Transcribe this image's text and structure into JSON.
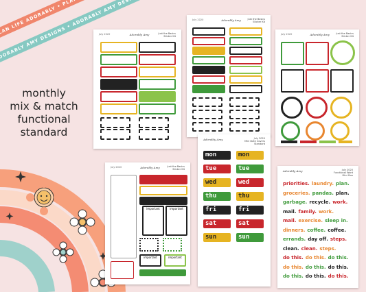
{
  "ribbons": {
    "top": "PLAN LIFE ADORABLY  •  PLAN LIFE ADORABLY  •  PLAN LIFE",
    "bottom": "ADORABLY AMY DESIGNS  •  ADORABLY AMY DESIGNS  •  ADORA"
  },
  "title": {
    "line1": "monthly",
    "line2": "mix & match",
    "line3": "functional",
    "line4": "standard"
  },
  "sheets": {
    "header_month": "July 2020",
    "brand": "Adorably Amy",
    "hdr_right_1": "Just the Basics",
    "hdr_right_2": "Sticker Kit",
    "sheet5_right_1": "July 2020",
    "sheet5_right_2": "Mini Date Covers",
    "sheet5_right_3": "Standard",
    "sheet6_right_1": "July 2020",
    "sheet6_right_2": "Functional Word",
    "sheet6_right_3": "Mini Size",
    "important": "important",
    "days_left": [
      "mon",
      "tue",
      "wed",
      "thu",
      "fri",
      "sat",
      "sun"
    ],
    "days_right": [
      "mon",
      "tue",
      "wed",
      "thu",
      "fri",
      "sat",
      "sun"
    ],
    "words": [
      [
        "priorities.",
        "laundry.",
        "plan."
      ],
      [
        "groceries.",
        "pandas.",
        "plan."
      ],
      [
        "garbage.",
        "recycle.",
        "work."
      ],
      [
        "mail.",
        "family.",
        "work."
      ],
      [
        "mail.",
        "exercise.",
        "sleep in."
      ],
      [
        "dinners.",
        "coffee.",
        "coffee."
      ],
      [
        "errands.",
        "day off.",
        "steps."
      ],
      [
        "clean.",
        "clean.",
        "steps."
      ],
      [
        "do this.",
        "do this.",
        "do this."
      ],
      [
        "do this.",
        "do this.",
        "do this."
      ],
      [
        "do this.",
        "do this.",
        "do this."
      ]
    ]
  },
  "colors": {
    "red": "#c8262c",
    "green": "#3f9a3b",
    "yellow": "#e6b422",
    "black": "#222222",
    "lime": "#8bc34a",
    "orange": "#e8862f"
  }
}
